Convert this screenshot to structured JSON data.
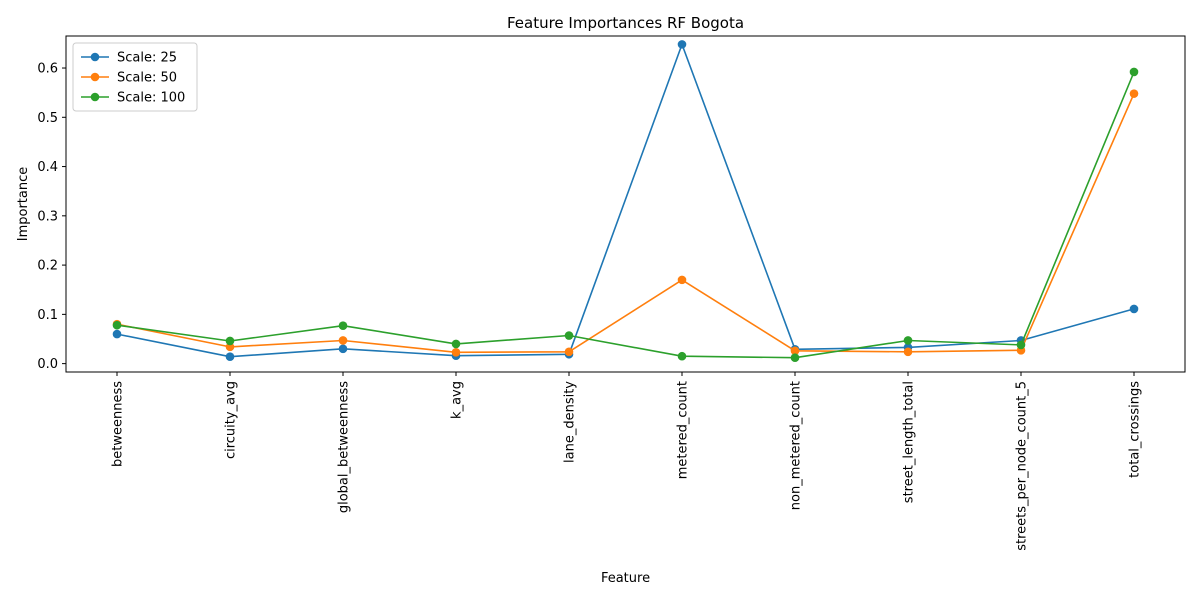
{
  "chart_data": {
    "type": "line",
    "title": "Feature Importances RF Bogota",
    "xlabel": "Feature",
    "ylabel": "Importance",
    "categories": [
      "betweenness",
      "circuity_avg",
      "global_betweenness",
      "k_avg",
      "lane_density",
      "metered_count",
      "non_metered_count",
      "street_length_total",
      "streets_per_node_count_5",
      "total_crossings"
    ],
    "ylim": [
      -0.017,
      0.665
    ],
    "yticks": [
      "0.0",
      "0.1",
      "0.2",
      "0.3",
      "0.4",
      "0.5",
      "0.6"
    ],
    "ytick_values": [
      0,
      0.1,
      0.2,
      0.3,
      0.4,
      0.5,
      0.6
    ],
    "grid": false,
    "legend_position": "top-left",
    "series": [
      {
        "name": "Scale: 25",
        "color": "#1f77b4",
        "values": [
          0.06,
          0.014,
          0.03,
          0.016,
          0.019,
          0.648,
          0.029,
          0.033,
          0.047,
          0.111
        ]
      },
      {
        "name": "Scale: 50",
        "color": "#ff7f0e",
        "values": [
          0.08,
          0.034,
          0.047,
          0.023,
          0.024,
          0.17,
          0.026,
          0.024,
          0.027,
          0.548
        ]
      },
      {
        "name": "Scale: 100",
        "color": "#2ca02c",
        "values": [
          0.078,
          0.046,
          0.077,
          0.04,
          0.057,
          0.015,
          0.012,
          0.047,
          0.038,
          0.592
        ]
      }
    ]
  }
}
